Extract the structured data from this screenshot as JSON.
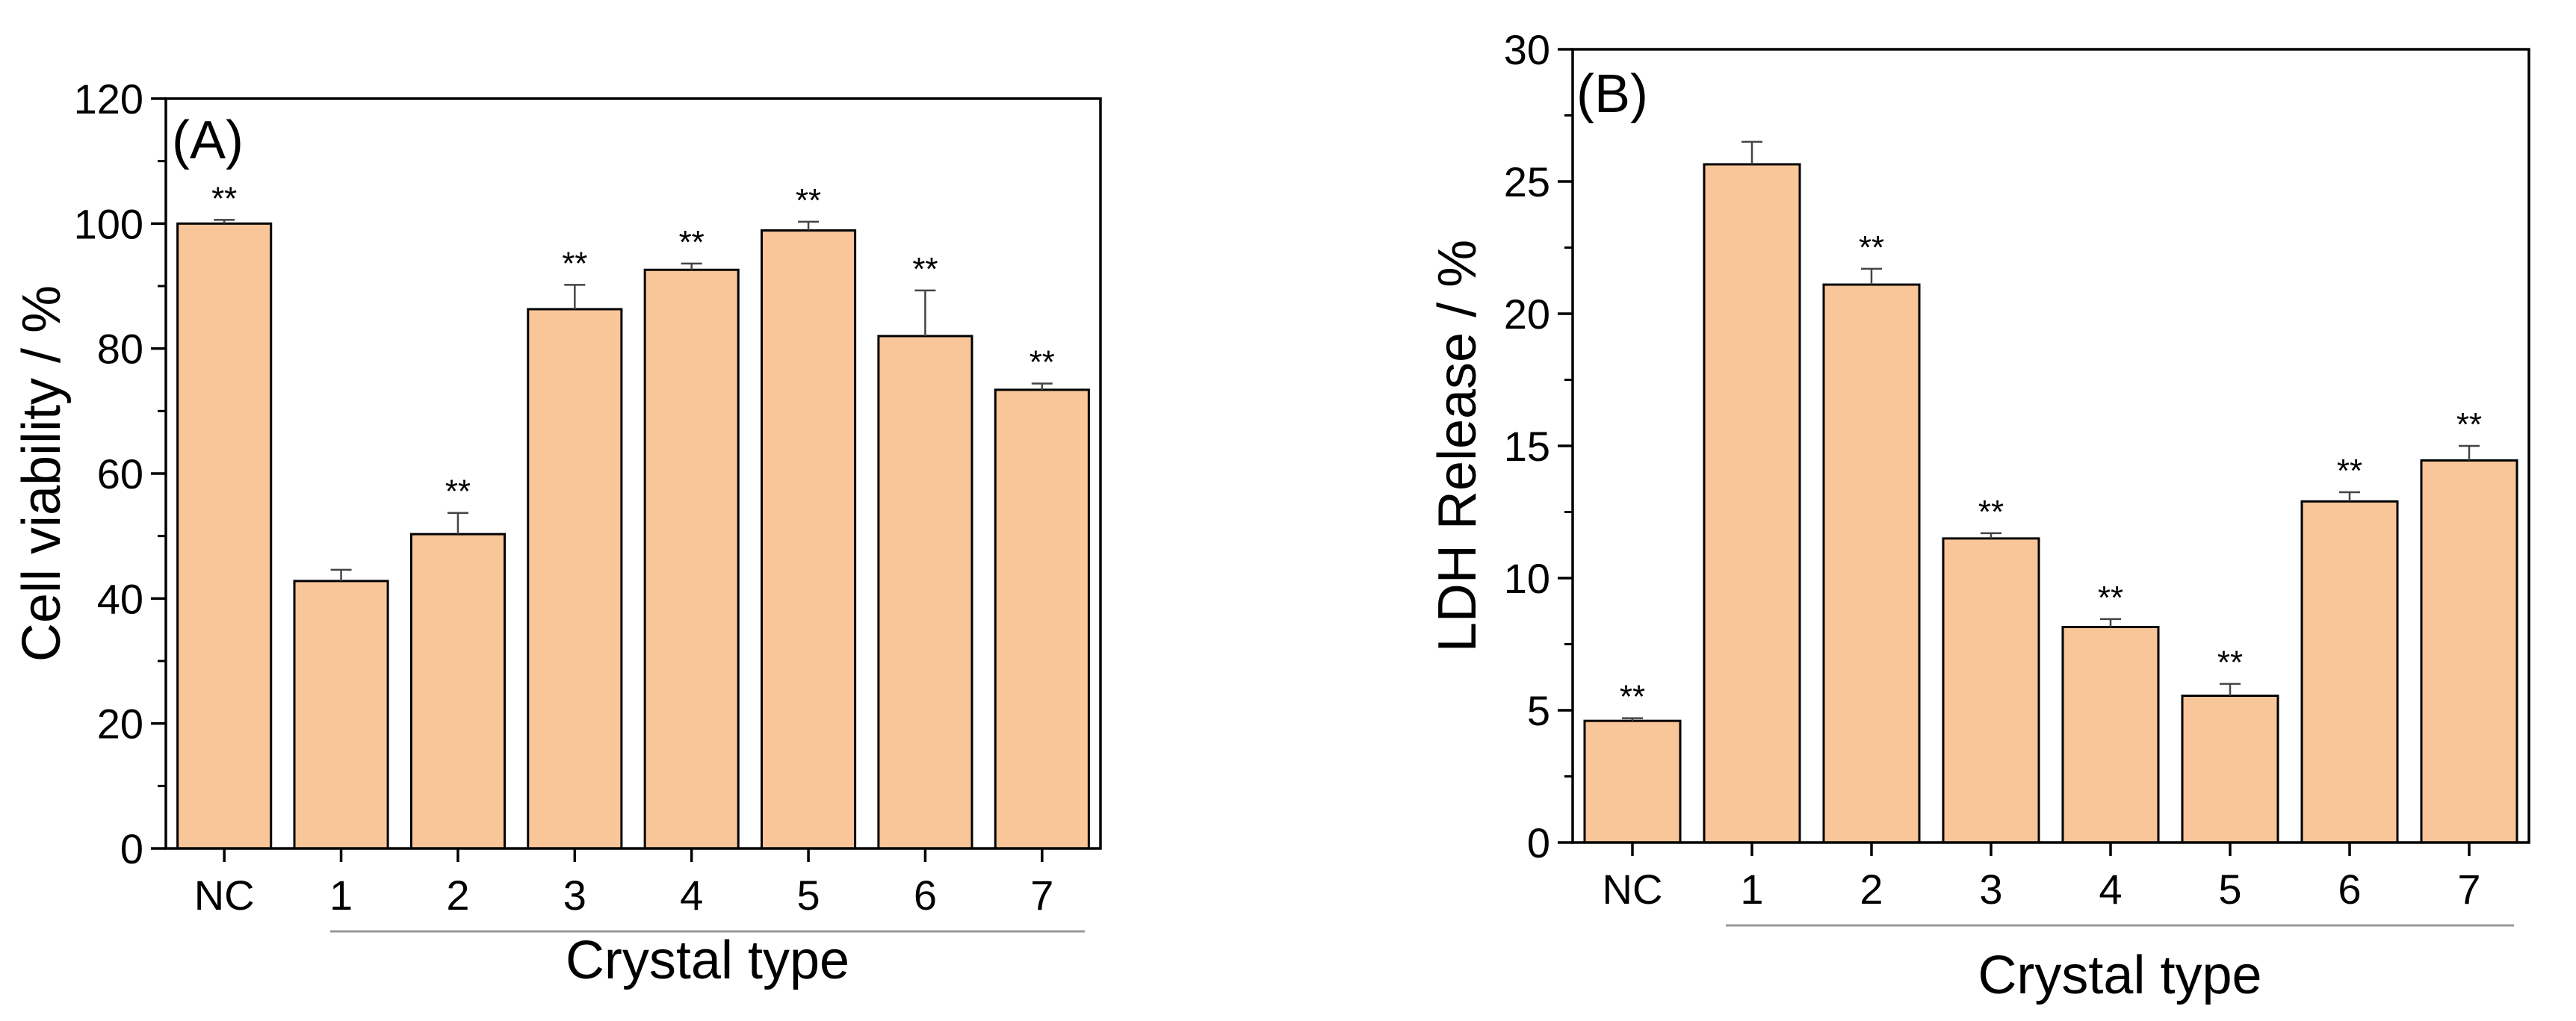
{
  "chart_data": [
    {
      "type": "bar",
      "panel_label": "(A)",
      "categories": [
        "NC",
        "1",
        "2",
        "3",
        "4",
        "5",
        "6",
        "7"
      ],
      "values": [
        100,
        42.8,
        50.3,
        86.3,
        92.6,
        98.9,
        82.0,
        73.4
      ],
      "errors": [
        0.6,
        1.8,
        3.4,
        3.9,
        1.0,
        1.4,
        7.3,
        1.0
      ],
      "significance": [
        "**",
        "",
        "**",
        "**",
        "**",
        "**",
        "**",
        "**"
      ],
      "xlabel": "Crystal type",
      "ylabel": "Cell viability / %",
      "ylim": [
        0,
        120
      ],
      "yticks": [
        0,
        20,
        40,
        60,
        80,
        100,
        120
      ],
      "yticks_minor": [
        10,
        30,
        50,
        70,
        90,
        110
      ],
      "bar_color": "#F9C699",
      "grid": false
    },
    {
      "type": "bar",
      "panel_label": "(B)",
      "categories": [
        "NC",
        "1",
        "2",
        "3",
        "4",
        "5",
        "6",
        "7"
      ],
      "values": [
        4.6,
        25.65,
        21.1,
        11.5,
        8.15,
        5.55,
        12.9,
        14.45
      ],
      "errors": [
        0.1,
        0.85,
        0.6,
        0.2,
        0.3,
        0.45,
        0.35,
        0.55
      ],
      "significance": [
        "**",
        "",
        "**",
        "**",
        "**",
        "**",
        "**",
        "**"
      ],
      "xlabel": "Crystal type",
      "ylabel": "LDH Release / %",
      "ylim": [
        0,
        30
      ],
      "yticks": [
        0,
        5,
        10,
        15,
        20,
        25,
        30
      ],
      "yticks_minor": [
        2.5,
        7.5,
        12.5,
        17.5,
        22.5,
        27.5
      ],
      "bar_color": "#F9C699",
      "grid": false
    }
  ]
}
